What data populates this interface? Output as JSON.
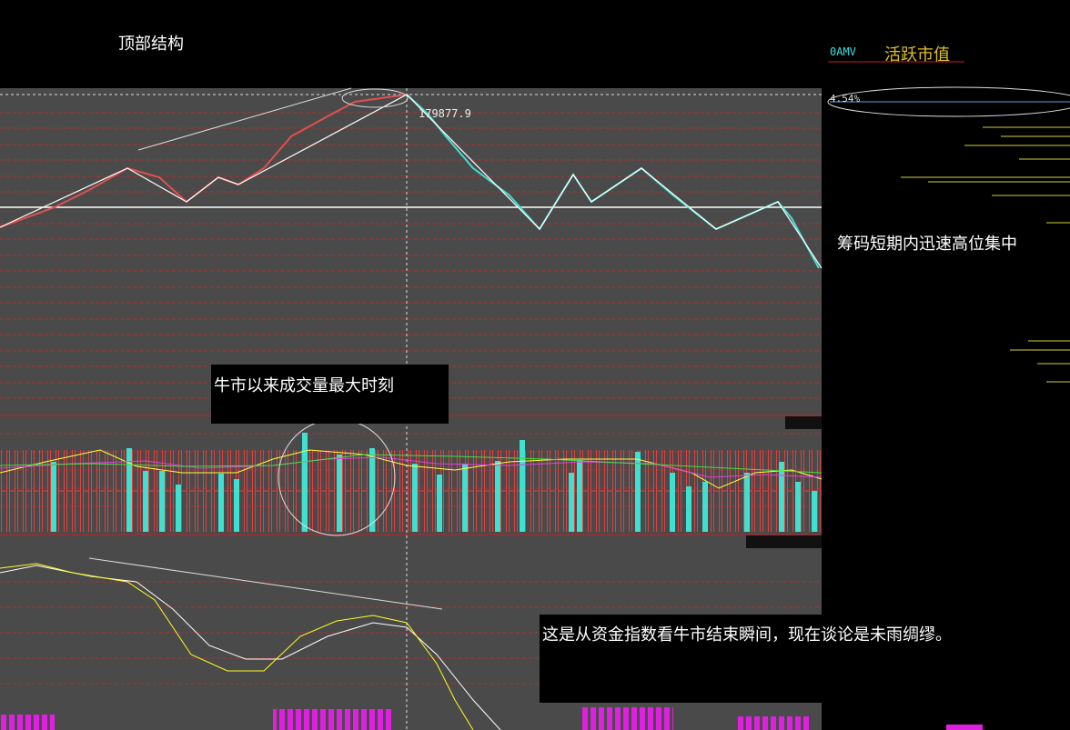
{
  "title": "顶部结构",
  "indicator": {
    "code": "0AMV",
    "name": "活跃市值",
    "percent": "4.54%"
  },
  "peak_label": "179877.9",
  "annotations": [
    "筹码短期内迅速高位集中",
    "牛市以来成交量最大时刻",
    "这是从资金指数看牛市结束瞬间，现在谈论是未雨绸缪。"
  ]
}
